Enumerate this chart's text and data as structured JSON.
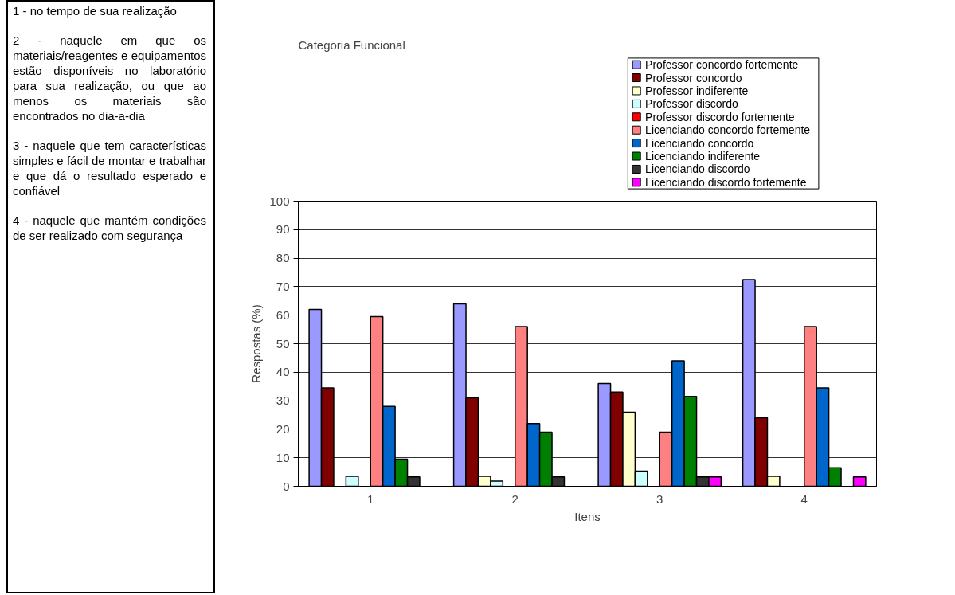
{
  "chart_data": {
    "type": "bar",
    "title": "Categoria Funcional",
    "xlabel": "Itens",
    "ylabel": "Respostas (%)",
    "categories": [
      "1",
      "2",
      "3",
      "4"
    ],
    "series": [
      {
        "name": "Professor concordo fortemente",
        "color": "#9999ff",
        "values": [
          62,
          64,
          36,
          72.5
        ]
      },
      {
        "name": "Professor concordo",
        "color": "#800000",
        "values": [
          34.5,
          31,
          33,
          24
        ]
      },
      {
        "name": "Professor indiferente",
        "color": "#ffffcc",
        "values": [
          0,
          3.5,
          26,
          3.5
        ]
      },
      {
        "name": "Professor discordo",
        "color": "#ccffff",
        "values": [
          3.5,
          1.8,
          5.3,
          0
        ]
      },
      {
        "name": "Professor discordo fortemente",
        "color": "#ff0000",
        "values": [
          0,
          0,
          0,
          0
        ]
      },
      {
        "name": "Licenciando concordo fortemente",
        "color": "#ff8080",
        "values": [
          59.5,
          56,
          19,
          56
        ]
      },
      {
        "name": "Licenciando concordo",
        "color": "#0066cc",
        "values": [
          28,
          22,
          44,
          34.5
        ]
      },
      {
        "name": "Licenciando indiferente",
        "color": "#008000",
        "values": [
          9.5,
          19,
          31.5,
          6.5
        ]
      },
      {
        "name": "Licenciando discordo",
        "color": "#333333",
        "values": [
          3.3,
          3.3,
          3.3,
          0
        ]
      },
      {
        "name": "Licenciando discordo fortemente",
        "color": "#ff00ff",
        "values": [
          0,
          0,
          3.3,
          3.3
        ]
      }
    ],
    "ylim": [
      0,
      100
    ],
    "yticks": [
      0,
      10,
      20,
      30,
      40,
      50,
      60,
      70,
      80,
      90,
      100
    ],
    "grid": "y",
    "legend": "top right",
    "annotations": [
      "1 - no tempo de sua realização",
      "2 - naquele em que os materiais/reagentes e equipamentos estão disponíveis no laboratório para sua realização, ou que ao menos os materiais são encontrados no dia-a-dia",
      "3 - naquele que tem características simples e fácil de montar e trabalhar e que dá o resultado esperado e confiável",
      "4 - naquele que mantém condições de ser realizado com segurança"
    ]
  }
}
